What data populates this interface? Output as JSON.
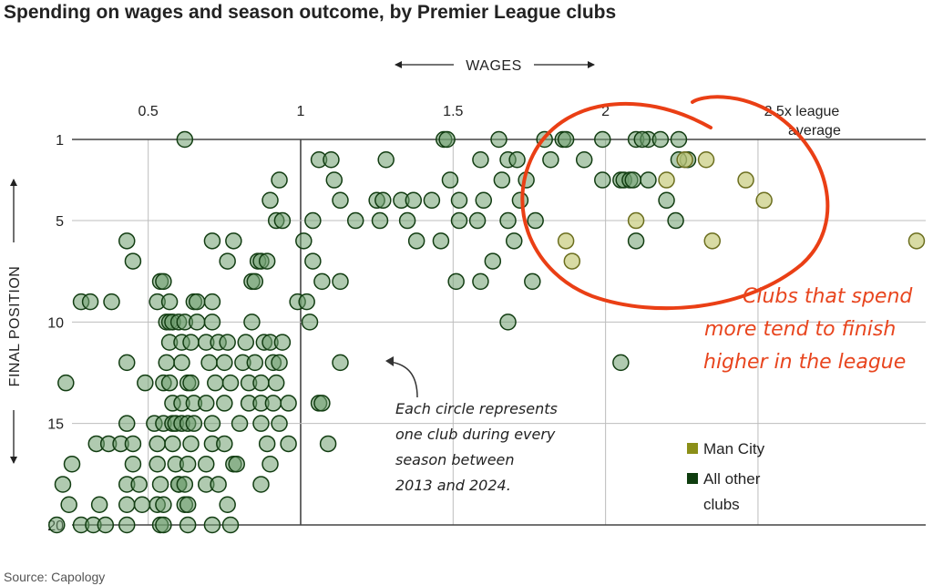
{
  "chart_data": {
    "type": "scatter",
    "title": "Spending on wages and season outcome, by Premier League clubs",
    "xlabel": "WAGES",
    "ylabel": "FINAL POSITION",
    "xlim": [
      0.25,
      3.05
    ],
    "ylim": [
      1,
      20
    ],
    "x_ticks": [
      {
        "value": 0.5,
        "label": "0.5"
      },
      {
        "value": 1,
        "label": "1"
      },
      {
        "value": 1.5,
        "label": "1.5"
      },
      {
        "value": 2,
        "label": "2"
      }
    ],
    "x_tick_last": {
      "value": 2.5,
      "line1": "2.5x league",
      "line2": "average"
    },
    "y_ticks": [
      1,
      5,
      10,
      15,
      20
    ],
    "grid": true,
    "legend": {
      "placement": "bottom-right"
    },
    "annotation": {
      "lines": [
        "Each circle represents",
        "one club during every",
        "season between",
        "2013 and 2024."
      ],
      "points_to": {
        "x": 1.12,
        "y": 12
      }
    },
    "callout": {
      "lines": [
        "Clubs  that spend",
        "more tend to finish",
        "higher in the league"
      ]
    },
    "source": "Source: Capology",
    "series": [
      {
        "name": "Man City",
        "color": "#c8cc7e",
        "stroke": "#6b6e1e",
        "points": [
          [
            2.2,
            3
          ],
          [
            2.26,
            2
          ],
          [
            2.33,
            2
          ],
          [
            2.46,
            3
          ],
          [
            2.52,
            4
          ],
          [
            2.1,
            5
          ],
          [
            1.87,
            6
          ],
          [
            1.89,
            7
          ],
          [
            2.35,
            6
          ],
          [
            3.02,
            6
          ]
        ]
      },
      {
        "name": "All other clubs",
        "color": "#6f9e6f",
        "stroke": "#123d12",
        "points": [
          [
            0.62,
            1
          ],
          [
            1.47,
            1
          ],
          [
            1.48,
            1
          ],
          [
            1.65,
            1
          ],
          [
            1.8,
            1
          ],
          [
            1.86,
            1
          ],
          [
            1.87,
            1
          ],
          [
            1.99,
            1
          ],
          [
            2.1,
            1
          ],
          [
            2.14,
            1
          ],
          [
            2.18,
            1
          ],
          [
            2.24,
            1
          ],
          [
            2.12,
            1
          ],
          [
            1.06,
            2
          ],
          [
            1.1,
            2
          ],
          [
            1.28,
            2
          ],
          [
            1.59,
            2
          ],
          [
            1.68,
            2
          ],
          [
            1.71,
            2
          ],
          [
            1.82,
            2
          ],
          [
            1.93,
            2
          ],
          [
            2.27,
            2
          ],
          [
            2.24,
            2
          ],
          [
            0.93,
            3
          ],
          [
            1.11,
            3
          ],
          [
            1.49,
            3
          ],
          [
            1.66,
            3
          ],
          [
            1.74,
            3
          ],
          [
            1.99,
            3
          ],
          [
            2.05,
            3
          ],
          [
            2.06,
            3
          ],
          [
            2.14,
            3
          ],
          [
            2.08,
            3
          ],
          [
            2.09,
            3
          ],
          [
            0.9,
            4
          ],
          [
            1.13,
            4
          ],
          [
            1.25,
            4
          ],
          [
            1.27,
            4
          ],
          [
            1.33,
            4
          ],
          [
            1.37,
            4
          ],
          [
            1.43,
            4
          ],
          [
            1.52,
            4
          ],
          [
            1.6,
            4
          ],
          [
            1.72,
            4
          ],
          [
            2.2,
            4
          ],
          [
            0.92,
            5
          ],
          [
            0.94,
            5
          ],
          [
            1.04,
            5
          ],
          [
            1.18,
            5
          ],
          [
            1.26,
            5
          ],
          [
            1.35,
            5
          ],
          [
            1.52,
            5
          ],
          [
            1.58,
            5
          ],
          [
            1.68,
            5
          ],
          [
            1.77,
            5
          ],
          [
            2.23,
            5
          ],
          [
            0.43,
            6
          ],
          [
            0.71,
            6
          ],
          [
            0.78,
            6
          ],
          [
            1.01,
            6
          ],
          [
            1.38,
            6
          ],
          [
            1.46,
            6
          ],
          [
            1.7,
            6
          ],
          [
            2.1,
            6
          ],
          [
            0.45,
            7
          ],
          [
            0.76,
            7
          ],
          [
            0.86,
            7
          ],
          [
            0.87,
            7
          ],
          [
            0.89,
            7
          ],
          [
            1.04,
            7
          ],
          [
            1.63,
            7
          ],
          [
            0.54,
            8
          ],
          [
            0.55,
            8
          ],
          [
            0.84,
            8
          ],
          [
            0.85,
            8
          ],
          [
            1.07,
            8
          ],
          [
            1.13,
            8
          ],
          [
            1.51,
            8
          ],
          [
            1.59,
            8
          ],
          [
            1.76,
            8
          ],
          [
            0.28,
            9
          ],
          [
            0.31,
            9
          ],
          [
            0.38,
            9
          ],
          [
            0.53,
            9
          ],
          [
            0.57,
            9
          ],
          [
            0.65,
            9
          ],
          [
            0.66,
            9
          ],
          [
            0.71,
            9
          ],
          [
            0.99,
            9
          ],
          [
            1.02,
            9
          ],
          [
            0.56,
            10
          ],
          [
            0.57,
            10
          ],
          [
            0.58,
            10
          ],
          [
            0.6,
            10
          ],
          [
            0.62,
            10
          ],
          [
            0.66,
            10
          ],
          [
            0.71,
            10
          ],
          [
            0.84,
            10
          ],
          [
            1.03,
            10
          ],
          [
            1.68,
            10
          ],
          [
            0.57,
            11
          ],
          [
            0.61,
            11
          ],
          [
            0.64,
            11
          ],
          [
            0.69,
            11
          ],
          [
            0.73,
            11
          ],
          [
            0.76,
            11
          ],
          [
            0.82,
            11
          ],
          [
            0.88,
            11
          ],
          [
            0.9,
            11
          ],
          [
            0.94,
            11
          ],
          [
            0.43,
            12
          ],
          [
            0.56,
            12
          ],
          [
            0.61,
            12
          ],
          [
            0.7,
            12
          ],
          [
            0.75,
            12
          ],
          [
            0.81,
            12
          ],
          [
            0.85,
            12
          ],
          [
            0.91,
            12
          ],
          [
            0.93,
            12
          ],
          [
            1.13,
            12
          ],
          [
            2.05,
            12
          ],
          [
            0.23,
            13
          ],
          [
            0.49,
            13
          ],
          [
            0.55,
            13
          ],
          [
            0.57,
            13
          ],
          [
            0.63,
            13
          ],
          [
            0.64,
            13
          ],
          [
            0.72,
            13
          ],
          [
            0.77,
            13
          ],
          [
            0.83,
            13
          ],
          [
            0.87,
            13
          ],
          [
            0.92,
            13
          ],
          [
            0.58,
            14
          ],
          [
            0.61,
            14
          ],
          [
            0.65,
            14
          ],
          [
            0.69,
            14
          ],
          [
            0.75,
            14
          ],
          [
            0.83,
            14
          ],
          [
            0.87,
            14
          ],
          [
            0.91,
            14
          ],
          [
            0.96,
            14
          ],
          [
            1.06,
            14
          ],
          [
            1.07,
            14
          ],
          [
            0.43,
            15
          ],
          [
            0.52,
            15
          ],
          [
            0.55,
            15
          ],
          [
            0.58,
            15
          ],
          [
            0.59,
            15
          ],
          [
            0.61,
            15
          ],
          [
            0.63,
            15
          ],
          [
            0.65,
            15
          ],
          [
            0.71,
            15
          ],
          [
            0.8,
            15
          ],
          [
            0.87,
            15
          ],
          [
            0.93,
            15
          ],
          [
            0.33,
            16
          ],
          [
            0.37,
            16
          ],
          [
            0.41,
            16
          ],
          [
            0.45,
            16
          ],
          [
            0.53,
            16
          ],
          [
            0.58,
            16
          ],
          [
            0.64,
            16
          ],
          [
            0.71,
            16
          ],
          [
            0.75,
            16
          ],
          [
            0.89,
            16
          ],
          [
            0.96,
            16
          ],
          [
            1.09,
            16
          ],
          [
            0.25,
            17
          ],
          [
            0.45,
            17
          ],
          [
            0.53,
            17
          ],
          [
            0.59,
            17
          ],
          [
            0.63,
            17
          ],
          [
            0.69,
            17
          ],
          [
            0.78,
            17
          ],
          [
            0.79,
            17
          ],
          [
            0.9,
            17
          ],
          [
            0.22,
            18
          ],
          [
            0.43,
            18
          ],
          [
            0.47,
            18
          ],
          [
            0.54,
            18
          ],
          [
            0.6,
            18
          ],
          [
            0.6,
            18
          ],
          [
            0.62,
            18
          ],
          [
            0.69,
            18
          ],
          [
            0.73,
            18
          ],
          [
            0.87,
            18
          ],
          [
            0.24,
            19
          ],
          [
            0.34,
            19
          ],
          [
            0.43,
            19
          ],
          [
            0.48,
            19
          ],
          [
            0.53,
            19
          ],
          [
            0.55,
            19
          ],
          [
            0.62,
            19
          ],
          [
            0.63,
            19
          ],
          [
            0.76,
            19
          ],
          [
            0.2,
            20
          ],
          [
            0.28,
            20
          ],
          [
            0.32,
            20
          ],
          [
            0.36,
            20
          ],
          [
            0.43,
            20
          ],
          [
            0.54,
            20
          ],
          [
            0.55,
            20
          ],
          [
            0.63,
            20
          ],
          [
            0.71,
            20
          ],
          [
            0.77,
            20
          ]
        ]
      }
    ]
  }
}
